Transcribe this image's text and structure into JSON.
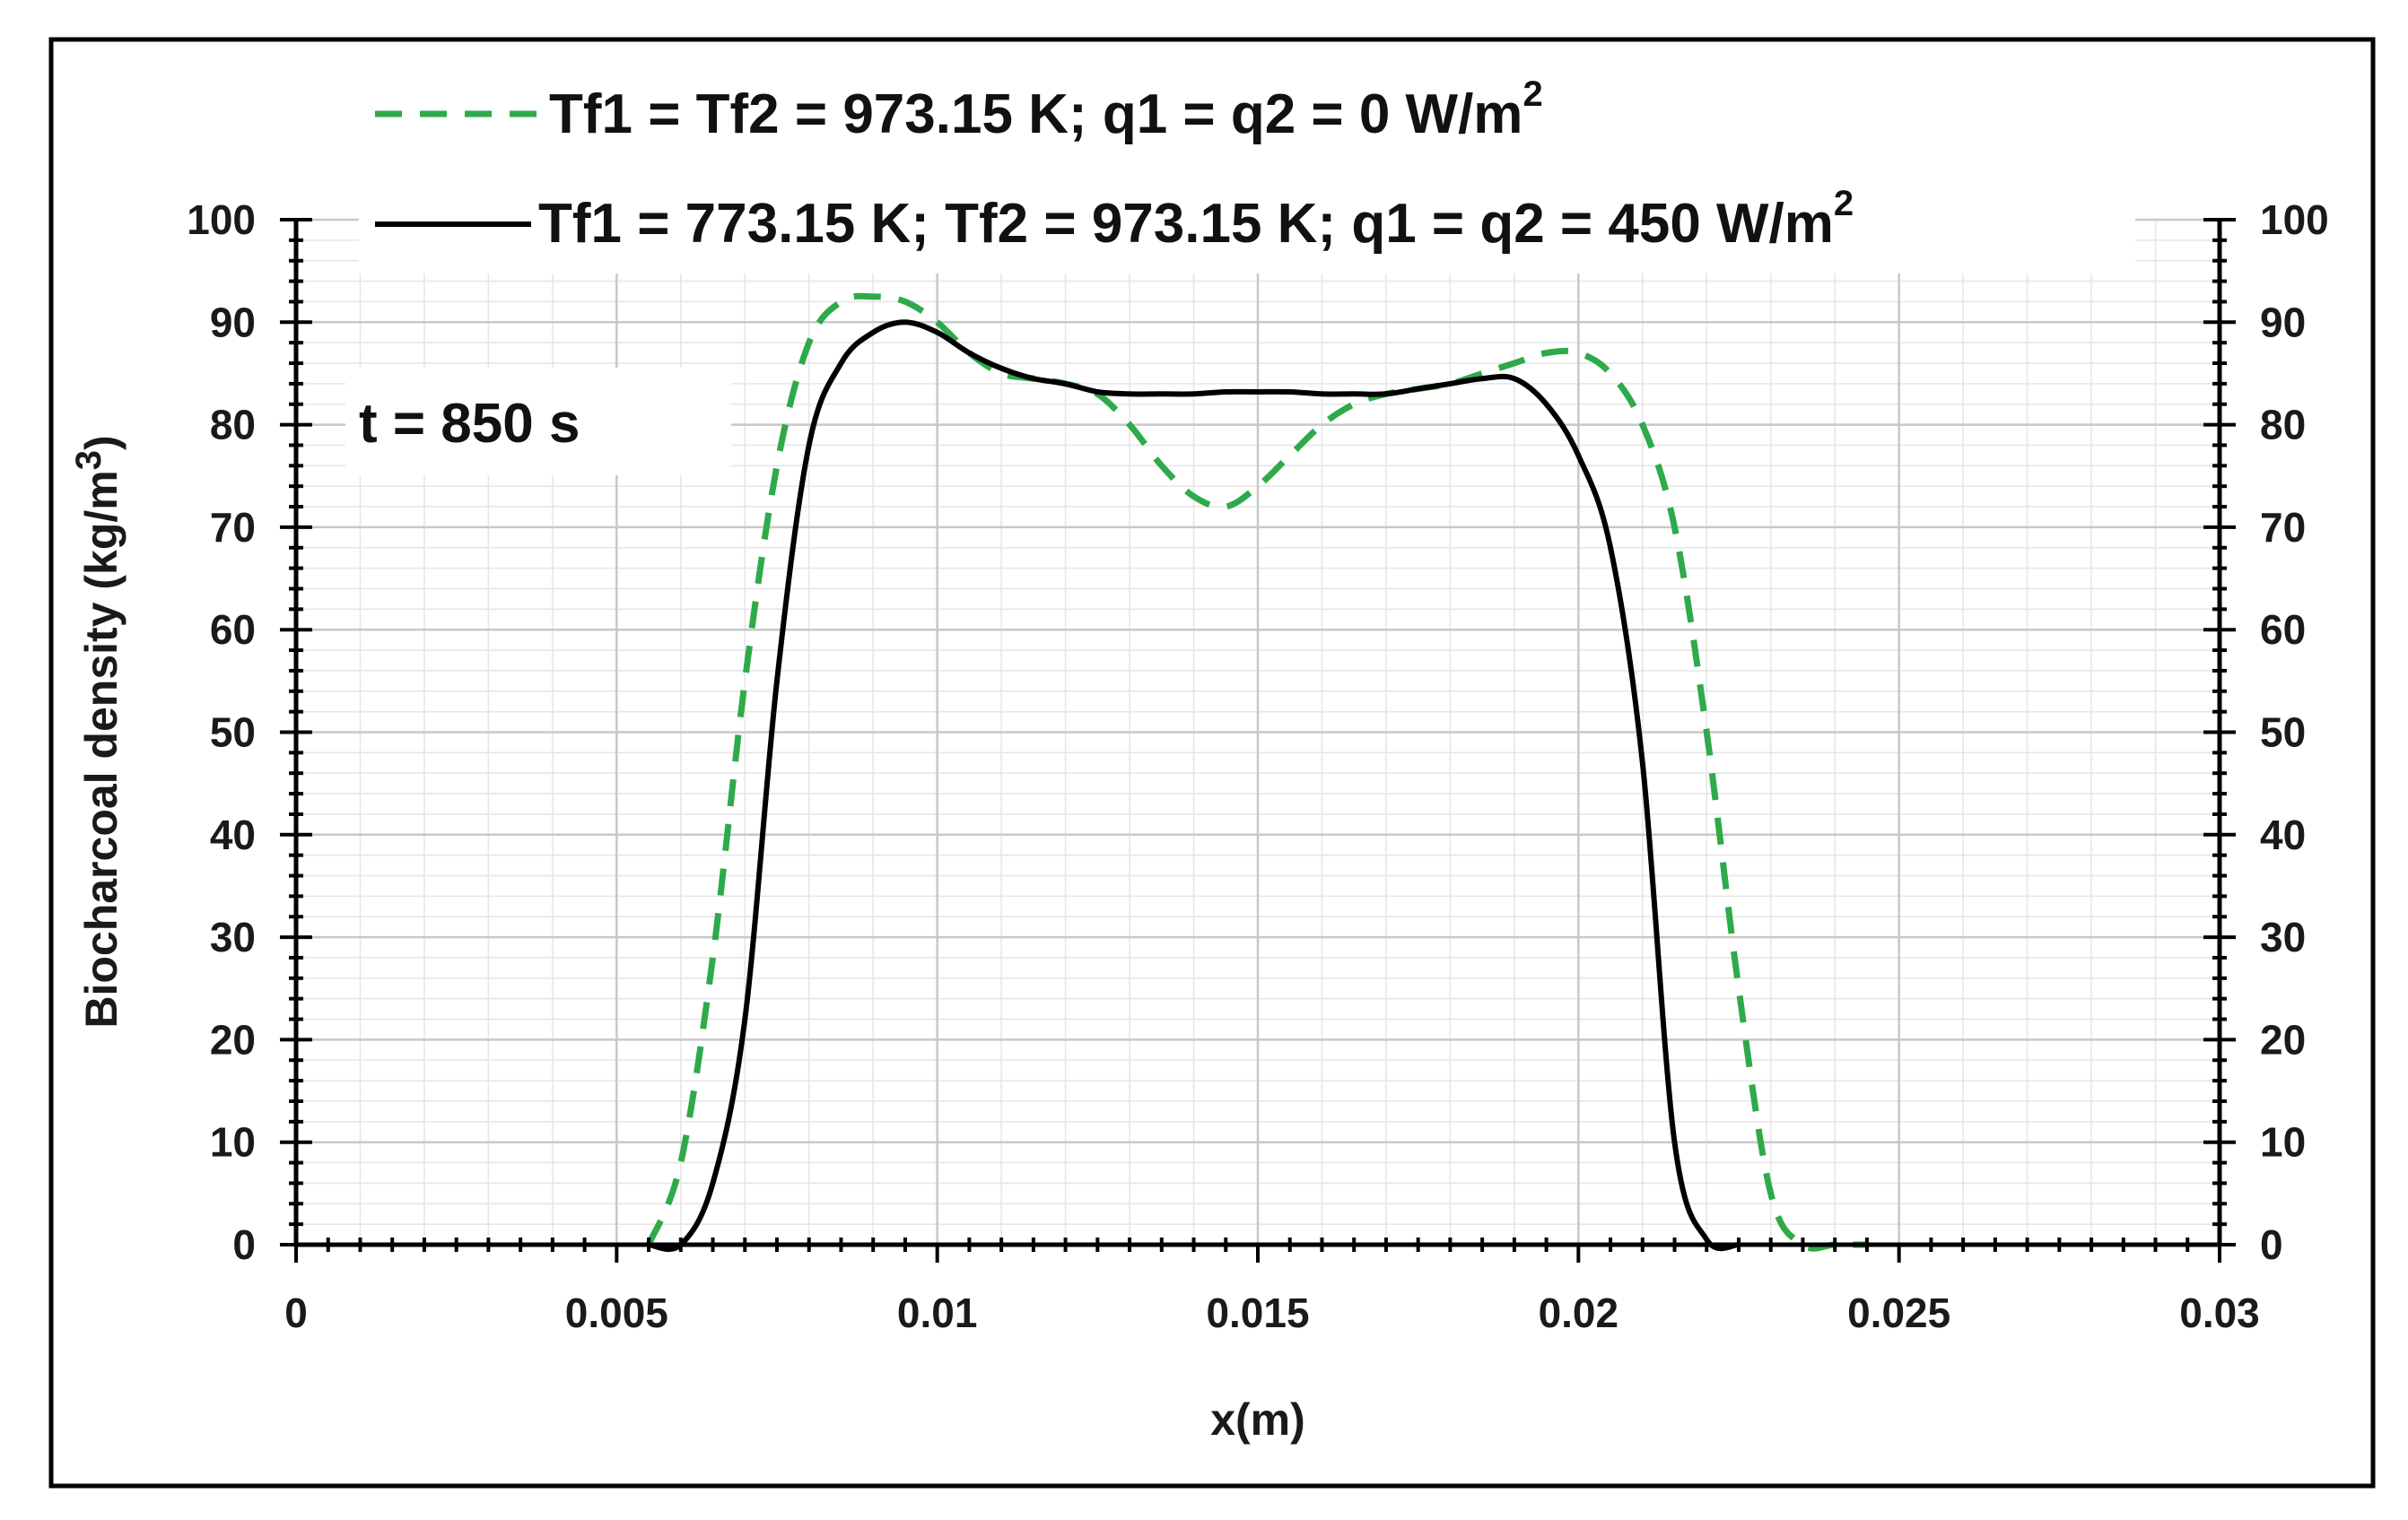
{
  "chart_data": {
    "type": "line",
    "title": "",
    "xlabel": "x(m)",
    "ylabel_main": "Biocharcoal density (kg/m",
    "ylabel_sup": "3",
    "ylabel_close": ")",
    "xlim": [
      0,
      0.03
    ],
    "ylim": [
      0,
      100
    ],
    "xticks": [
      "0",
      "0.005",
      "0.01",
      "0.015",
      "0.02",
      "0.025",
      "0.03"
    ],
    "yticks_left": [
      "0",
      "10",
      "20",
      "30",
      "40",
      "50",
      "60",
      "70",
      "80",
      "90",
      "100"
    ],
    "yticks_right": [
      "0",
      "10",
      "20",
      "30",
      "40",
      "50",
      "60",
      "70",
      "80",
      "90",
      "100"
    ],
    "grid": true,
    "legend_position": "top",
    "annotation": "t = 850 s",
    "series": [
      {
        "name": "Tf1 = Tf2 = 973.15 K; q1 = q2 = 0 W/m",
        "name_sup": "2",
        "color": "#2eaa4a",
        "style": "dashed",
        "x": [
          0.0055,
          0.006,
          0.0065,
          0.007,
          0.0075,
          0.008,
          0.0085,
          0.009,
          0.0095,
          0.01,
          0.0105,
          0.011,
          0.0115,
          0.012,
          0.0125,
          0.013,
          0.0135,
          0.014,
          0.0145,
          0.015,
          0.0155,
          0.016,
          0.0165,
          0.017,
          0.0175,
          0.018,
          0.0185,
          0.019,
          0.0195,
          0.02,
          0.0205,
          0.021,
          0.0215,
          0.022,
          0.0225,
          0.023,
          0.0235,
          0.024,
          0.0245
        ],
        "y": [
          0,
          8,
          28,
          55,
          76,
          88,
          92,
          92.5,
          92,
          90,
          87,
          85,
          84.5,
          84,
          83,
          80,
          76,
          73,
          72,
          74,
          77,
          80,
          82,
          83,
          83.5,
          84,
          85,
          86,
          87,
          87,
          85,
          80,
          70,
          50,
          25,
          5,
          0,
          0,
          0
        ]
      },
      {
        "name": "Tf1 = 773.15 K; Tf2 = 973.15 K; q1 = q2 = 450 W/m",
        "name_sup": "2",
        "color": "#000000",
        "style": "solid",
        "x": [
          0.0055,
          0.006,
          0.0065,
          0.007,
          0.0075,
          0.008,
          0.0085,
          0.009,
          0.0095,
          0.01,
          0.0105,
          0.011,
          0.0115,
          0.012,
          0.0125,
          0.013,
          0.0135,
          0.014,
          0.0145,
          0.015,
          0.0155,
          0.016,
          0.0165,
          0.017,
          0.0175,
          0.018,
          0.0185,
          0.019,
          0.0195,
          0.02,
          0.0205,
          0.021,
          0.0215,
          0.022,
          0.0225
        ],
        "y": [
          0,
          0,
          6,
          22,
          55,
          78,
          86,
          89,
          90,
          89,
          87,
          85.5,
          84.5,
          84,
          83.2,
          83,
          83,
          83,
          83.2,
          83.2,
          83.2,
          83,
          83,
          83,
          83.5,
          84,
          84.5,
          84.5,
          82,
          77,
          68,
          47,
          10,
          0.5,
          0
        ]
      }
    ]
  }
}
